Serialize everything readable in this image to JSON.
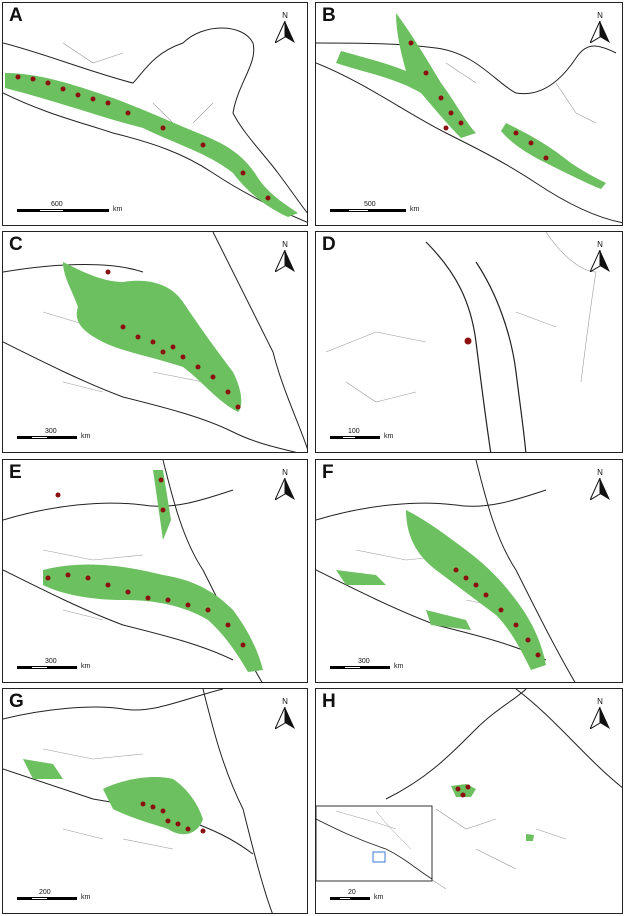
{
  "colors": {
    "range": "#6cc060",
    "point": "#8b1010",
    "border": "#222222",
    "state": "#9a9a9a",
    "inset": "#3a7bd5"
  },
  "north_label": "N",
  "panels": [
    {
      "label": "A",
      "scale_value": "600",
      "unit": "km"
    },
    {
      "label": "B",
      "scale_value": "500",
      "unit": "km"
    },
    {
      "label": "C",
      "scale_value": "300",
      "unit": "km"
    },
    {
      "label": "D",
      "scale_value": "100",
      "unit": "km"
    },
    {
      "label": "E",
      "scale_value": "300",
      "unit": "km"
    },
    {
      "label": "F",
      "scale_value": "300",
      "unit": "km"
    },
    {
      "label": "G",
      "scale_value": "200",
      "unit": "km"
    },
    {
      "label": "H",
      "scale_value": "20",
      "unit": "km"
    }
  ]
}
